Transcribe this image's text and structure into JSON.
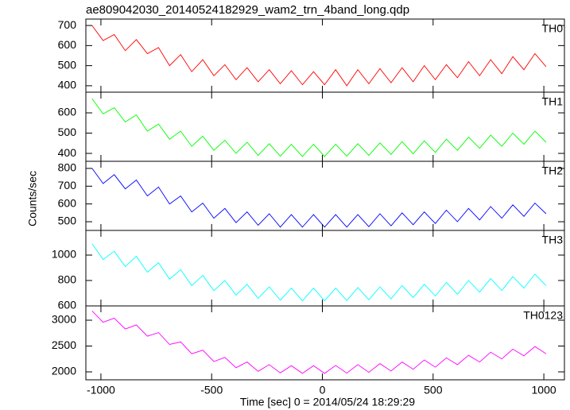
{
  "chart_data": [
    {
      "type": "line",
      "title": "ae809042030_20140524182929_wam2_trn_4band_long.qdp",
      "x": [
        -1040,
        -990,
        -940,
        -890,
        -840,
        -790,
        -740,
        -690,
        -640,
        -590,
        -540,
        -490,
        -440,
        -390,
        -340,
        -290,
        -240,
        -190,
        -140,
        -90,
        -40,
        10,
        60,
        110,
        160,
        210,
        260,
        310,
        360,
        410,
        460,
        510,
        560,
        610,
        660,
        710,
        760,
        810,
        860,
        910,
        960,
        1010
      ],
      "xlim": [
        -1068,
        1093
      ],
      "ylim": [
        368,
        732
      ],
      "yticks": [
        400,
        500,
        600,
        700
      ],
      "series": [
        {
          "name": "TH0",
          "color": "#ff0000",
          "values": [
            700,
            625,
            655,
            575,
            630,
            560,
            590,
            500,
            555,
            470,
            530,
            450,
            505,
            430,
            490,
            420,
            480,
            410,
            475,
            405,
            470,
            405,
            480,
            400,
            480,
            410,
            485,
            415,
            490,
            420,
            500,
            430,
            505,
            440,
            520,
            450,
            530,
            460,
            545,
            480,
            560,
            495
          ]
        }
      ]
    },
    {
      "type": "line",
      "x": [
        -1040,
        -990,
        -940,
        -890,
        -840,
        -790,
        -740,
        -690,
        -640,
        -590,
        -540,
        -490,
        -440,
        -390,
        -340,
        -290,
        -240,
        -190,
        -140,
        -90,
        -40,
        10,
        60,
        110,
        160,
        210,
        260,
        310,
        360,
        410,
        460,
        510,
        560,
        610,
        660,
        710,
        760,
        810,
        860,
        910,
        960,
        1010
      ],
      "xlim": [
        -1068,
        1093
      ],
      "ylim": [
        361,
        702
      ],
      "yticks": [
        400,
        500,
        600
      ],
      "series": [
        {
          "name": "TH1",
          "color": "#00ff00",
          "values": [
            670,
            595,
            625,
            555,
            590,
            510,
            545,
            470,
            510,
            435,
            485,
            415,
            465,
            400,
            455,
            390,
            448,
            386,
            445,
            385,
            445,
            385,
            445,
            386,
            448,
            390,
            452,
            395,
            458,
            398,
            462,
            405,
            470,
            415,
            480,
            425,
            490,
            435,
            500,
            445,
            510,
            455
          ]
        }
      ]
    },
    {
      "type": "line",
      "ylabel": "Counts/sec",
      "x": [
        -1040,
        -990,
        -940,
        -890,
        -840,
        -790,
        -740,
        -690,
        -640,
        -590,
        -540,
        -490,
        -440,
        -390,
        -340,
        -290,
        -240,
        -190,
        -140,
        -90,
        -40,
        10,
        60,
        110,
        160,
        210,
        260,
        310,
        360,
        410,
        460,
        510,
        560,
        610,
        660,
        710,
        760,
        810,
        860,
        910,
        960,
        1010
      ],
      "xlim": [
        -1068,
        1093
      ],
      "ylim": [
        451,
        840
      ],
      "yticks": [
        500,
        600,
        700,
        800
      ],
      "series": [
        {
          "name": "TH2",
          "color": "#0000ff",
          "values": [
            800,
            715,
            765,
            685,
            735,
            645,
            695,
            600,
            645,
            555,
            605,
            520,
            575,
            495,
            555,
            480,
            545,
            470,
            540,
            470,
            540,
            470,
            540,
            470,
            540,
            472,
            545,
            477,
            550,
            483,
            555,
            490,
            565,
            500,
            575,
            510,
            585,
            520,
            595,
            530,
            605,
            545
          ]
        }
      ]
    },
    {
      "type": "line",
      "x": [
        -1040,
        -990,
        -940,
        -890,
        -840,
        -790,
        -740,
        -690,
        -640,
        -590,
        -540,
        -490,
        -440,
        -390,
        -340,
        -290,
        -240,
        -190,
        -140,
        -90,
        -40,
        10,
        60,
        110,
        160,
        210,
        260,
        310,
        360,
        410,
        460,
        510,
        560,
        610,
        660,
        710,
        760,
        810,
        860,
        910,
        960,
        1010
      ],
      "xlim": [
        -1068,
        1093
      ],
      "ylim": [
        600,
        1194
      ],
      "yticks": [
        600,
        800,
        1000
      ],
      "series": [
        {
          "name": "TH3",
          "color": "#00ffff",
          "values": [
            1090,
            965,
            1030,
            910,
            990,
            865,
            940,
            810,
            885,
            760,
            840,
            720,
            800,
            685,
            770,
            660,
            750,
            645,
            740,
            640,
            740,
            640,
            740,
            642,
            745,
            648,
            750,
            655,
            760,
            665,
            770,
            678,
            785,
            692,
            800,
            708,
            815,
            722,
            830,
            740,
            850,
            760
          ]
        }
      ]
    },
    {
      "type": "line",
      "xlabel": "Time [sec] 0 = 2014/05/24 18:29:29",
      "x": [
        -1040,
        -990,
        -940,
        -890,
        -840,
        -790,
        -740,
        -690,
        -640,
        -590,
        -540,
        -490,
        -440,
        -390,
        -340,
        -290,
        -240,
        -190,
        -140,
        -90,
        -40,
        10,
        60,
        110,
        160,
        210,
        260,
        310,
        360,
        410,
        460,
        510,
        560,
        610,
        660,
        710,
        760,
        810,
        860,
        910,
        960,
        1010
      ],
      "xlim": [
        -1068,
        1093
      ],
      "xticks": [
        -1000,
        -500,
        0,
        500,
        1000
      ],
      "ylim": [
        1846,
        3277
      ],
      "yticks": [
        2000,
        2500,
        3000
      ],
      "series": [
        {
          "name": "TH0123",
          "color": "#ff00ff",
          "values": [
            3180,
            2960,
            3040,
            2830,
            2910,
            2690,
            2760,
            2530,
            2580,
            2350,
            2420,
            2200,
            2280,
            2080,
            2190,
            2010,
            2140,
            1980,
            2120,
            1970,
            2120,
            1970,
            2125,
            1975,
            2140,
            1990,
            2160,
            2015,
            2190,
            2050,
            2230,
            2090,
            2270,
            2140,
            2320,
            2190,
            2380,
            2250,
            2440,
            2310,
            2490,
            2350
          ]
        }
      ]
    }
  ]
}
